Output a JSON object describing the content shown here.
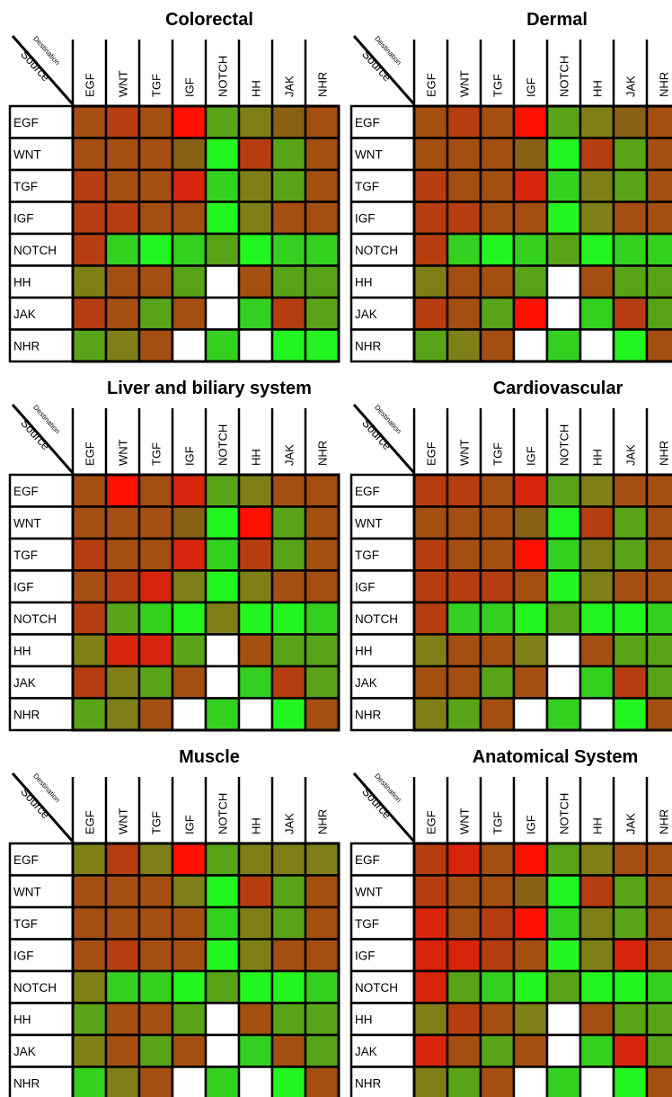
{
  "chart_data": {
    "type": "heatmap",
    "row_axis_label": "Source",
    "col_axis_label": "Destination",
    "rows": [
      "EGF",
      "WNT",
      "TGF",
      "IGF",
      "NOTCH",
      "HH",
      "JAK",
      "NHR"
    ],
    "cols": [
      "EGF",
      "WNT",
      "TGF",
      "IGF",
      "NOTCH",
      "HH",
      "JAK",
      "NHR"
    ],
    "colors": {
      "K": "#A54E12",
      "R": "#B53D0F",
      "O": "#8A6114",
      "Y": "#7F7F17",
      "G": "#58A418",
      "L": "#33D020",
      "B": "#22F51F",
      "E": "#FF1100",
      "D": "#D8240B",
      "W": "#FFFFFF"
    },
    "panels": [
      {
        "title": "Colorectal",
        "matrix": [
          [
            "K",
            "R",
            "K",
            "E",
            "G",
            "Y",
            "O",
            "K"
          ],
          [
            "K",
            "K",
            "K",
            "O",
            "B",
            "R",
            "G",
            "K"
          ],
          [
            "R",
            "K",
            "K",
            "D",
            "L",
            "Y",
            "G",
            "K"
          ],
          [
            "R",
            "R",
            "K",
            "K",
            "B",
            "Y",
            "K",
            "K"
          ],
          [
            "R",
            "L",
            "B",
            "L",
            "G",
            "B",
            "L",
            "L"
          ],
          [
            "Y",
            "K",
            "K",
            "G",
            "W",
            "K",
            "G",
            "G"
          ],
          [
            "R",
            "K",
            "G",
            "K",
            "W",
            "L",
            "R",
            "G"
          ],
          [
            "G",
            "Y",
            "K",
            "W",
            "L",
            "W",
            "B",
            "B"
          ]
        ]
      },
      {
        "title": "Dermal",
        "matrix": [
          [
            "K",
            "R",
            "K",
            "E",
            "G",
            "Y",
            "O",
            "K"
          ],
          [
            "K",
            "K",
            "K",
            "O",
            "B",
            "R",
            "G",
            "K"
          ],
          [
            "R",
            "K",
            "K",
            "D",
            "L",
            "Y",
            "G",
            "K"
          ],
          [
            "R",
            "R",
            "K",
            "K",
            "B",
            "Y",
            "K",
            "K"
          ],
          [
            "R",
            "L",
            "B",
            "L",
            "G",
            "B",
            "L",
            "L"
          ],
          [
            "Y",
            "K",
            "K",
            "G",
            "W",
            "K",
            "G",
            "G"
          ],
          [
            "R",
            "K",
            "G",
            "E",
            "W",
            "L",
            "R",
            "G"
          ],
          [
            "G",
            "Y",
            "K",
            "W",
            "L",
            "W",
            "B",
            "K"
          ]
        ]
      },
      {
        "title": "Liver and biliary system",
        "matrix": [
          [
            "K",
            "E",
            "K",
            "D",
            "G",
            "Y",
            "K",
            "K"
          ],
          [
            "K",
            "K",
            "K",
            "O",
            "B",
            "E",
            "G",
            "K"
          ],
          [
            "R",
            "K",
            "K",
            "D",
            "L",
            "R",
            "G",
            "K"
          ],
          [
            "K",
            "R",
            "D",
            "Y",
            "B",
            "Y",
            "K",
            "K"
          ],
          [
            "R",
            "G",
            "L",
            "B",
            "Y",
            "B",
            "B",
            "L"
          ],
          [
            "Y",
            "D",
            "D",
            "G",
            "W",
            "K",
            "G",
            "G"
          ],
          [
            "R",
            "Y",
            "G",
            "K",
            "W",
            "L",
            "R",
            "G"
          ],
          [
            "G",
            "Y",
            "K",
            "W",
            "L",
            "W",
            "B",
            "K"
          ]
        ]
      },
      {
        "title": "Cardiovascular",
        "matrix": [
          [
            "R",
            "R",
            "K",
            "D",
            "G",
            "Y",
            "K",
            "K"
          ],
          [
            "K",
            "K",
            "K",
            "O",
            "B",
            "R",
            "G",
            "K"
          ],
          [
            "R",
            "K",
            "K",
            "E",
            "L",
            "Y",
            "G",
            "K"
          ],
          [
            "R",
            "R",
            "R",
            "K",
            "B",
            "Y",
            "K",
            "K"
          ],
          [
            "R",
            "L",
            "L",
            "B",
            "G",
            "B",
            "B",
            "L"
          ],
          [
            "Y",
            "K",
            "K",
            "Y",
            "W",
            "K",
            "G",
            "G"
          ],
          [
            "K",
            "K",
            "G",
            "K",
            "W",
            "L",
            "R",
            "G"
          ],
          [
            "Y",
            "G",
            "K",
            "W",
            "L",
            "W",
            "B",
            "K"
          ]
        ]
      },
      {
        "title": "Muscle",
        "matrix": [
          [
            "Y",
            "R",
            "Y",
            "E",
            "G",
            "Y",
            "Y",
            "Y"
          ],
          [
            "K",
            "K",
            "K",
            "Y",
            "B",
            "R",
            "G",
            "K"
          ],
          [
            "K",
            "K",
            "K",
            "K",
            "L",
            "Y",
            "G",
            "K"
          ],
          [
            "K",
            "R",
            "K",
            "K",
            "B",
            "Y",
            "K",
            "K"
          ],
          [
            "Y",
            "L",
            "L",
            "B",
            "G",
            "B",
            "B",
            "L"
          ],
          [
            "G",
            "K",
            "K",
            "G",
            "W",
            "K",
            "G",
            "G"
          ],
          [
            "Y",
            "K",
            "G",
            "K",
            "W",
            "L",
            "K",
            "G"
          ],
          [
            "L",
            "Y",
            "K",
            "W",
            "L",
            "W",
            "B",
            "K"
          ]
        ]
      },
      {
        "title": "Anatomical System",
        "matrix": [
          [
            "R",
            "D",
            "K",
            "E",
            "G",
            "Y",
            "K",
            "K"
          ],
          [
            "R",
            "K",
            "K",
            "O",
            "B",
            "R",
            "G",
            "K"
          ],
          [
            "D",
            "K",
            "R",
            "E",
            "L",
            "Y",
            "G",
            "K"
          ],
          [
            "D",
            "D",
            "R",
            "K",
            "B",
            "Y",
            "D",
            "K"
          ],
          [
            "D",
            "G",
            "L",
            "B",
            "G",
            "B",
            "B",
            "L"
          ],
          [
            "Y",
            "R",
            "K",
            "Y",
            "W",
            "K",
            "G",
            "G"
          ],
          [
            "D",
            "K",
            "G",
            "K",
            "W",
            "L",
            "D",
            "G"
          ],
          [
            "Y",
            "G",
            "K",
            "W",
            "L",
            "W",
            "B",
            "K"
          ]
        ]
      }
    ]
  }
}
